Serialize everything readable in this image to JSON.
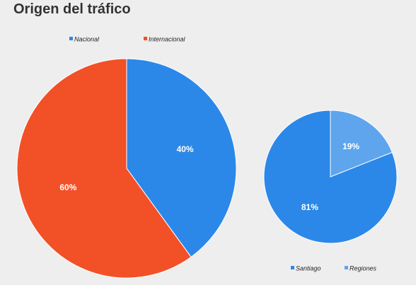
{
  "title": "Origen del tráfico",
  "chart_data": [
    {
      "type": "pie",
      "title": "",
      "slices": [
        {
          "label": "Nacional",
          "value": 40,
          "display": "40%",
          "color": "#2b88e8"
        },
        {
          "label": "Internacional",
          "value": 60,
          "display": "60%",
          "color": "#f25027"
        }
      ],
      "legend": "top"
    },
    {
      "type": "pie",
      "title": "",
      "slices": [
        {
          "label": "Santiago",
          "value": 81,
          "display": "81%",
          "color": "#2b88e8"
        },
        {
          "label": "Regiones",
          "value": 19,
          "display": "19%",
          "color": "#5ea5ee"
        }
      ],
      "legend": "bottom"
    }
  ]
}
